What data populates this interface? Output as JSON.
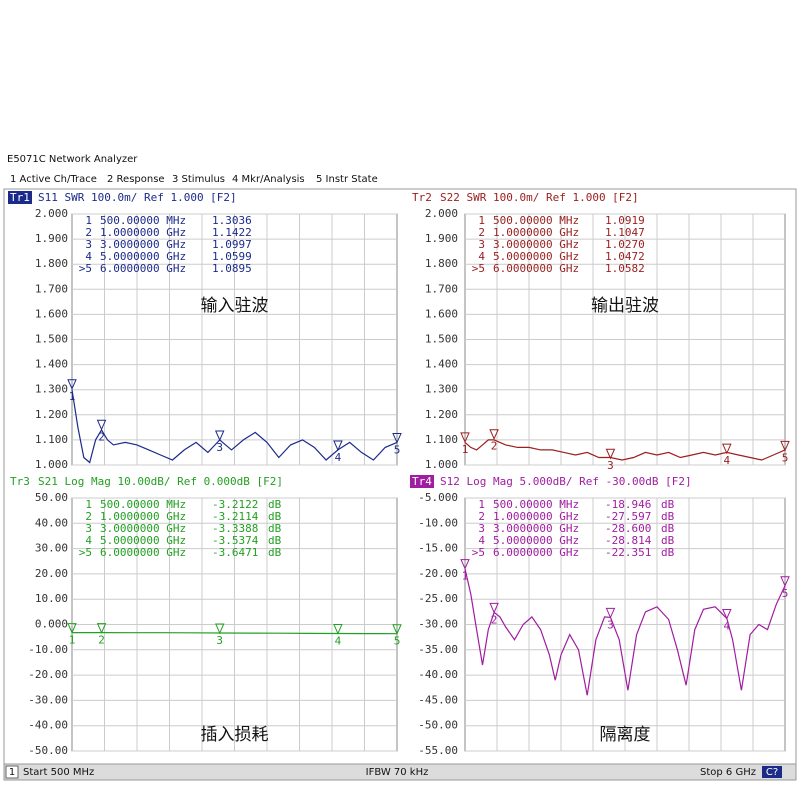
{
  "window": {
    "title": "E5071C Network Analyzer",
    "menu": [
      "1 Active Ch/Trace",
      "2 Response",
      "3 Stimulus",
      "4 Mkr/Analysis",
      "5 Instr State"
    ]
  },
  "status_bar": {
    "channel": "1",
    "start": "Start 500 MHz",
    "ifbw": "IFBW 70 kHz",
    "stop": "Stop 6 GHz",
    "cal": "C?"
  },
  "chart_data": [
    {
      "type": "line",
      "trace_id": "Tr1",
      "highlighted": true,
      "header": "S11  SWR 100.0m/ Ref 1.000 [F2]",
      "color": "#1c2a8a",
      "annotation": "输入驻波",
      "xlim": [
        0.5,
        6
      ],
      "ylim": [
        1,
        2
      ],
      "yticks": [
        {
          "value": 1,
          "label": "1.000"
        },
        {
          "value": 1.1,
          "label": "1.100"
        },
        {
          "value": 1.2,
          "label": "1.200"
        },
        {
          "value": 1.3,
          "label": "1.300"
        },
        {
          "value": 1.4,
          "label": "1.400"
        },
        {
          "value": 1.5,
          "label": "1.500"
        },
        {
          "value": 1.6,
          "label": "1.600"
        },
        {
          "value": 1.7,
          "label": "1.700"
        },
        {
          "value": 1.8,
          "label": "1.800"
        },
        {
          "value": 1.9,
          "label": "1.900"
        },
        {
          "value": 2,
          "label": "2.000"
        }
      ],
      "x": [
        0.5,
        0.6,
        0.7,
        0.8,
        0.9,
        1.0,
        1.1,
        1.2,
        1.4,
        1.6,
        1.8,
        2.0,
        2.2,
        2.4,
        2.6,
        2.8,
        3.0,
        3.2,
        3.4,
        3.6,
        3.8,
        4.0,
        4.2,
        4.4,
        4.6,
        4.8,
        5.0,
        5.2,
        5.4,
        5.6,
        5.8,
        6.0
      ],
      "values": [
        1.3,
        1.15,
        1.03,
        1.01,
        1.1,
        1.14,
        1.1,
        1.08,
        1.09,
        1.08,
        1.06,
        1.04,
        1.02,
        1.06,
        1.09,
        1.05,
        1.1,
        1.06,
        1.1,
        1.13,
        1.09,
        1.03,
        1.08,
        1.1,
        1.07,
        1.02,
        1.06,
        1.09,
        1.05,
        1.02,
        1.07,
        1.09
      ],
      "markers": {
        "ids": [
          "1",
          "2",
          "3",
          "4",
          ">5"
        ],
        "plot_labels": [
          "1",
          "2",
          "3",
          "4",
          "5"
        ],
        "x": [
          0.5,
          1,
          3,
          5,
          6
        ],
        "x_labels": [
          "500.00000 MHz",
          "1.0000000 GHz",
          "3.0000000 GHz",
          "5.0000000 GHz",
          "6.0000000 GHz"
        ],
        "values": [
          1.3036,
          1.1422,
          1.0997,
          1.0599,
          1.0895
        ],
        "value_labels": [
          "1.3036",
          "1.1422",
          "1.0997",
          "1.0599",
          "1.0895"
        ]
      }
    },
    {
      "type": "line",
      "trace_id": "Tr2",
      "highlighted": false,
      "header": "S22  SWR 100.0m/ Ref 1.000 [F2]",
      "color": "#9a2020",
      "annotation": "输出驻波",
      "xlim": [
        0.5,
        6
      ],
      "ylim": [
        1,
        2
      ],
      "yticks": [
        {
          "value": 1,
          "label": "1.000"
        },
        {
          "value": 1.1,
          "label": "1.100"
        },
        {
          "value": 1.2,
          "label": "1.200"
        },
        {
          "value": 1.3,
          "label": "1.300"
        },
        {
          "value": 1.4,
          "label": "1.400"
        },
        {
          "value": 1.5,
          "label": "1.500"
        },
        {
          "value": 1.6,
          "label": "1.600"
        },
        {
          "value": 1.7,
          "label": "1.700"
        },
        {
          "value": 1.8,
          "label": "1.800"
        },
        {
          "value": 1.9,
          "label": "1.900"
        },
        {
          "value": 2,
          "label": "2.000"
        }
      ],
      "x": [
        0.5,
        0.6,
        0.7,
        0.8,
        0.9,
        1.0,
        1.1,
        1.2,
        1.4,
        1.6,
        1.8,
        2.0,
        2.2,
        2.4,
        2.6,
        2.8,
        3.0,
        3.2,
        3.4,
        3.6,
        3.8,
        4.0,
        4.2,
        4.4,
        4.6,
        4.8,
        5.0,
        5.2,
        5.4,
        5.6,
        5.8,
        6.0
      ],
      "values": [
        1.09,
        1.07,
        1.06,
        1.08,
        1.1,
        1.1,
        1.09,
        1.08,
        1.07,
        1.07,
        1.06,
        1.06,
        1.05,
        1.04,
        1.05,
        1.03,
        1.03,
        1.02,
        1.03,
        1.05,
        1.04,
        1.05,
        1.03,
        1.04,
        1.05,
        1.04,
        1.05,
        1.04,
        1.03,
        1.02,
        1.04,
        1.06
      ],
      "markers": {
        "ids": [
          "1",
          "2",
          "3",
          "4",
          ">5"
        ],
        "plot_labels": [
          "1",
          "2",
          "3",
          "4",
          "5"
        ],
        "x": [
          0.5,
          1,
          3,
          5,
          6
        ],
        "x_labels": [
          "500.00000 MHz",
          "1.0000000 GHz",
          "3.0000000 GHz",
          "5.0000000 GHz",
          "6.0000000 GHz"
        ],
        "values": [
          1.0919,
          1.1047,
          1.027,
          1.0472,
          1.0582
        ],
        "value_labels": [
          "1.0919",
          "1.1047",
          "1.0270",
          "1.0472",
          "1.0582"
        ]
      }
    },
    {
      "type": "line",
      "trace_id": "Tr3",
      "highlighted": false,
      "header": "S21  Log Mag 10.00dB/ Ref 0.000dB [F2]",
      "color": "#22a022",
      "annotation": "插入损耗",
      "xlim": [
        0.5,
        6
      ],
      "ylim": [
        -50,
        50
      ],
      "yticks": [
        {
          "value": -50,
          "label": "-50.00"
        },
        {
          "value": -40,
          "label": "-40.00"
        },
        {
          "value": -30,
          "label": "-30.00"
        },
        {
          "value": -20,
          "label": "-20.00"
        },
        {
          "value": -10,
          "label": "-10.00"
        },
        {
          "value": 0,
          "label": "0.000"
        },
        {
          "value": 10,
          "label": "10.00"
        },
        {
          "value": 20,
          "label": "20.00"
        },
        {
          "value": 30,
          "label": "30.00"
        },
        {
          "value": 40,
          "label": "40.00"
        },
        {
          "value": 50,
          "label": "50.00"
        }
      ],
      "x": [
        0.5,
        1.0,
        1.5,
        2.0,
        2.5,
        3.0,
        3.5,
        4.0,
        4.5,
        5.0,
        5.5,
        6.0
      ],
      "values": [
        -3.21,
        -3.21,
        -3.23,
        -3.26,
        -3.3,
        -3.34,
        -3.4,
        -3.45,
        -3.5,
        -3.54,
        -3.6,
        -3.65
      ],
      "markers": {
        "ids": [
          "1",
          "2",
          "3",
          "4",
          ">5"
        ],
        "plot_labels": [
          "1",
          "2",
          "3",
          "4",
          "5"
        ],
        "x": [
          0.5,
          1,
          3,
          5,
          6
        ],
        "unit": "dB",
        "x_labels": [
          "500.00000 MHz",
          "1.0000000 GHz",
          "3.0000000 GHz",
          "5.0000000 GHz",
          "6.0000000 GHz"
        ],
        "values": [
          -3.2122,
          -3.2114,
          -3.3388,
          -3.5374,
          -3.6471
        ],
        "value_labels": [
          "-3.2122",
          "-3.2114",
          "-3.3388",
          "-3.5374",
          "-3.6471"
        ]
      }
    },
    {
      "type": "line",
      "trace_id": "Tr4",
      "highlighted": true,
      "header": "S12  Log Mag 5.000dB/ Ref -30.00dB [F2]",
      "color": "#a01ca0",
      "annotation": "隔离度",
      "xlim": [
        0.5,
        6
      ],
      "ylim": [
        -55,
        -5
      ],
      "yticks": [
        {
          "value": -55,
          "label": "-55.00"
        },
        {
          "value": -50,
          "label": "-50.00"
        },
        {
          "value": -45,
          "label": "-45.00"
        },
        {
          "value": -40,
          "label": "-40.00"
        },
        {
          "value": -35,
          "label": "-35.00"
        },
        {
          "value": -30,
          "label": "-30.00"
        },
        {
          "value": -25,
          "label": "-25.00"
        },
        {
          "value": -20,
          "label": "-20.00"
        },
        {
          "value": -15,
          "label": "-15.00"
        },
        {
          "value": -10,
          "label": "-10.00"
        },
        {
          "value": -5,
          "label": "-5.000"
        }
      ],
      "x": [
        0.5,
        0.6,
        0.7,
        0.8,
        0.9,
        1.0,
        1.1,
        1.2,
        1.35,
        1.5,
        1.65,
        1.8,
        1.95,
        2.05,
        2.15,
        2.3,
        2.45,
        2.6,
        2.75,
        2.9,
        3.0,
        3.15,
        3.3,
        3.45,
        3.6,
        3.8,
        4.0,
        4.15,
        4.3,
        4.45,
        4.6,
        4.8,
        5.0,
        5.1,
        5.25,
        5.4,
        5.55,
        5.7,
        5.85,
        6.0
      ],
      "values": [
        -19,
        -24,
        -31,
        -38,
        -31,
        -27.6,
        -28.5,
        -30.5,
        -33,
        -30,
        -28.5,
        -31,
        -36,
        -41,
        -36,
        -32,
        -35,
        -44,
        -33,
        -28.5,
        -28.6,
        -33,
        -43,
        -32,
        -27.5,
        -26.5,
        -29,
        -35,
        -42,
        -31,
        -27,
        -26.5,
        -28.8,
        -33,
        -43,
        -32,
        -30,
        -31,
        -26,
        -22.35
      ],
      "markers": {
        "ids": [
          "1",
          "2",
          "3",
          "4",
          ">5"
        ],
        "plot_labels": [
          "1",
          "2",
          "3",
          "4",
          "5"
        ],
        "x": [
          0.5,
          1,
          3,
          5,
          6
        ],
        "unit": "dB",
        "x_labels": [
          "500.00000 MHz",
          "1.0000000 GHz",
          "3.0000000 GHz",
          "5.0000000 GHz",
          "6.0000000 GHz"
        ],
        "values": [
          -18.946,
          -27.597,
          -28.6,
          -28.814,
          -22.351
        ],
        "value_labels": [
          "-18.946",
          "-27.597",
          "-28.600",
          "-28.814",
          "-22.351"
        ]
      }
    }
  ]
}
